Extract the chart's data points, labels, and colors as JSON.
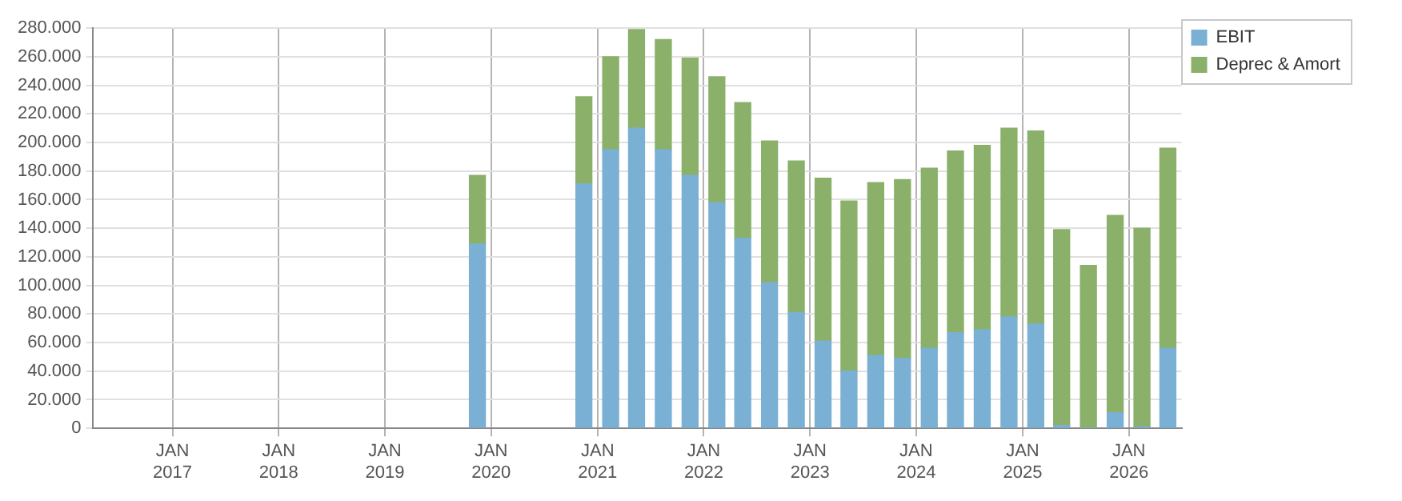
{
  "chart_data": {
    "type": "bar",
    "stacked": true,
    "grid": true,
    "legend": "top right",
    "x": [
      "2019-11-15",
      "2020-11-15",
      "2021-02-15",
      "2021-05-15",
      "2021-08-15",
      "2021-11-15",
      "2022-02-15",
      "2022-05-15",
      "2022-08-15",
      "2022-11-15",
      "2023-02-15",
      "2023-05-15",
      "2023-08-15",
      "2023-11-15",
      "2024-02-15",
      "2024-05-15",
      "2024-08-15",
      "2024-11-15",
      "2025-02-15",
      "2025-05-15",
      "2025-08-15",
      "2025-11-15",
      "2026-02-15",
      "2026-05-15"
    ],
    "series": [
      {
        "name": "EBIT",
        "color": "#7ab0d4",
        "values": [
          129000,
          171000,
          195000,
          210000,
          195000,
          177000,
          158000,
          133000,
          102000,
          81000,
          61000,
          40000,
          51000,
          49000,
          56000,
          67000,
          69000,
          78000,
          73000,
          2000,
          0,
          11000,
          1000,
          56000
        ]
      },
      {
        "name": "Deprec & Amort",
        "color": "#8ab06a",
        "values": [
          48000,
          61000,
          65000,
          69000,
          77000,
          82000,
          88000,
          95000,
          99000,
          106000,
          114000,
          119000,
          121000,
          125000,
          126000,
          127000,
          129000,
          132000,
          135000,
          137000,
          114000,
          138000,
          139000,
          140000
        ]
      }
    ],
    "xlim": [
      "2016-04-01",
      "2026-07-01"
    ],
    "xticks": [
      {
        "value": "2017-01-01",
        "label": "JAN 2017"
      },
      {
        "value": "2018-01-01",
        "label": "JAN 2018"
      },
      {
        "value": "2019-01-01",
        "label": "JAN 2019"
      },
      {
        "value": "2020-01-01",
        "label": "JAN 2020"
      },
      {
        "value": "2021-01-01",
        "label": "JAN 2021"
      },
      {
        "value": "2022-01-01",
        "label": "JAN 2022"
      },
      {
        "value": "2023-01-01",
        "label": "JAN 2023"
      },
      {
        "value": "2024-01-01",
        "label": "JAN 2024"
      },
      {
        "value": "2025-01-01",
        "label": "JAN 2025"
      },
      {
        "value": "2026-01-01",
        "label": "JAN 2026"
      }
    ],
    "ylim": [
      0,
      280000
    ],
    "yticks": [
      0,
      {
        "value": 20000,
        "label": "20.000"
      },
      {
        "value": 40000,
        "label": "40.000"
      },
      {
        "value": 60000,
        "label": "60.000"
      },
      {
        "value": 80000,
        "label": "80.000"
      },
      {
        "value": 100000,
        "label": "100.000"
      },
      {
        "value": 120000,
        "label": "120.000"
      },
      {
        "value": 140000,
        "label": "140.000"
      },
      {
        "value": 160000,
        "label": "160.000"
      },
      {
        "value": 180000,
        "label": "180.000"
      },
      {
        "value": 200000,
        "label": "200.000"
      },
      {
        "value": 220000,
        "label": "220.000"
      },
      {
        "value": 240000,
        "label": "240.000"
      },
      {
        "value": 260000,
        "label": "260.000"
      },
      {
        "value": 280000,
        "label": "280.000"
      }
    ]
  }
}
